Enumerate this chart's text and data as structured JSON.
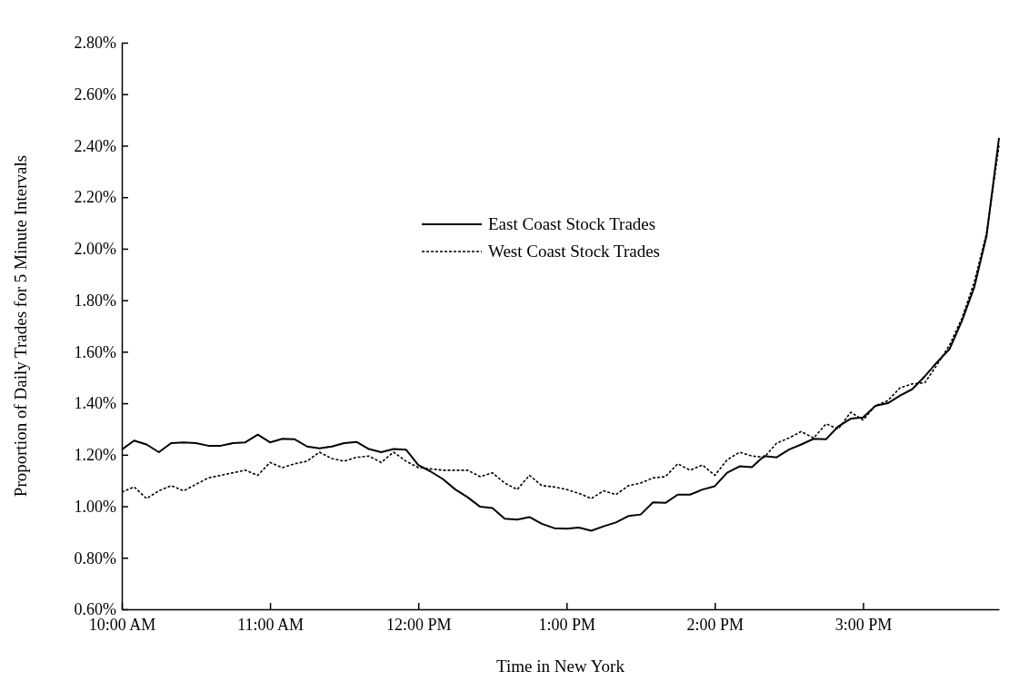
{
  "chart_data": {
    "type": "line",
    "xlabel": "Time in New York",
    "ylabel": "Proportion of Daily Trades for 5 Minute Intervals",
    "x": [
      10,
      10.083,
      10.167,
      10.25,
      10.333,
      10.417,
      10.5,
      10.583,
      10.667,
      10.75,
      10.833,
      10.917,
      11,
      11.083,
      11.167,
      11.25,
      11.333,
      11.417,
      11.5,
      11.583,
      11.667,
      11.75,
      11.833,
      11.917,
      12,
      12.083,
      12.167,
      12.25,
      12.333,
      12.417,
      12.5,
      12.583,
      12.667,
      12.75,
      12.833,
      12.917,
      13,
      13.083,
      13.167,
      13.25,
      13.333,
      13.417,
      13.5,
      13.583,
      13.667,
      13.75,
      13.833,
      13.917,
      14,
      14.083,
      14.167,
      14.25,
      14.333,
      14.417,
      14.5,
      14.583,
      14.667,
      14.75,
      14.833,
      14.917,
      15,
      15.083,
      15.167,
      15.25,
      15.333,
      15.417,
      15.5,
      15.583,
      15.667,
      15.75,
      15.833,
      15.917
    ],
    "series": [
      {
        "name": "East Coast Stock Trades",
        "color": "#000000",
        "line_style": "solid",
        "values": [
          1.22,
          1.255,
          1.24,
          1.21,
          1.245,
          1.248,
          1.245,
          1.235,
          1.235,
          1.245,
          1.248,
          1.278,
          1.248,
          1.262,
          1.26,
          1.232,
          1.225,
          1.232,
          1.245,
          1.25,
          1.222,
          1.21,
          1.222,
          1.22,
          1.16,
          1.135,
          1.105,
          1.065,
          1.035,
          0.998,
          0.993,
          0.952,
          0.948,
          0.958,
          0.932,
          0.915,
          0.913,
          0.917,
          0.905,
          0.922,
          0.937,
          0.962,
          0.968,
          1.015,
          1.013,
          1.045,
          1.045,
          1.065,
          1.078,
          1.13,
          1.155,
          1.152,
          1.195,
          1.19,
          1.22,
          1.24,
          1.262,
          1.26,
          1.31,
          1.34,
          1.345,
          1.39,
          1.4,
          1.43,
          1.455,
          1.505,
          1.56,
          1.61,
          1.72,
          1.85,
          2.05,
          2.43
        ]
      },
      {
        "name": "West Coast Stock Trades",
        "color": "#000000",
        "line_style": "dotted",
        "values": [
          1.055,
          1.075,
          1.03,
          1.06,
          1.08,
          1.06,
          1.085,
          1.11,
          1.12,
          1.13,
          1.14,
          1.12,
          1.17,
          1.15,
          1.165,
          1.175,
          1.21,
          1.185,
          1.175,
          1.19,
          1.195,
          1.17,
          1.21,
          1.175,
          1.15,
          1.145,
          1.14,
          1.14,
          1.14,
          1.115,
          1.13,
          1.09,
          1.065,
          1.12,
          1.08,
          1.075,
          1.065,
          1.05,
          1.03,
          1.06,
          1.045,
          1.08,
          1.09,
          1.11,
          1.115,
          1.165,
          1.14,
          1.16,
          1.12,
          1.18,
          1.21,
          1.195,
          1.19,
          1.245,
          1.265,
          1.29,
          1.265,
          1.32,
          1.3,
          1.365,
          1.335,
          1.39,
          1.41,
          1.46,
          1.475,
          1.48,
          1.55,
          1.625,
          1.73,
          1.87,
          2.06,
          2.4
        ]
      }
    ],
    "xlim": [
      10,
      15.917
    ],
    "xticks": [
      {
        "value": 10,
        "label": "10:00 AM"
      },
      {
        "value": 11,
        "label": "11:00 AM"
      },
      {
        "value": 12,
        "label": "12:00 PM"
      },
      {
        "value": 13,
        "label": "1:00 PM"
      },
      {
        "value": 14,
        "label": "2:00 PM"
      },
      {
        "value": 15,
        "label": "3:00 PM"
      }
    ],
    "ylim": [
      0.6,
      2.8
    ],
    "yticks": [
      {
        "value": 0.6,
        "label": "0.60%"
      },
      {
        "value": 0.8,
        "label": "0.80%"
      },
      {
        "value": 1.0,
        "label": "1.00%"
      },
      {
        "value": 1.2,
        "label": "1.20%"
      },
      {
        "value": 1.4,
        "label": "1.40%"
      },
      {
        "value": 1.6,
        "label": "1.60%"
      },
      {
        "value": 1.8,
        "label": "1.80%"
      },
      {
        "value": 2.0,
        "label": "2.00%"
      },
      {
        "value": 2.2,
        "label": "2.20%"
      },
      {
        "value": 2.4,
        "label": "2.40%"
      },
      {
        "value": 2.6,
        "label": "2.60%"
      },
      {
        "value": 2.8,
        "label": "2.80%"
      }
    ],
    "grid": false,
    "legend": "top",
    "marker": "none"
  }
}
